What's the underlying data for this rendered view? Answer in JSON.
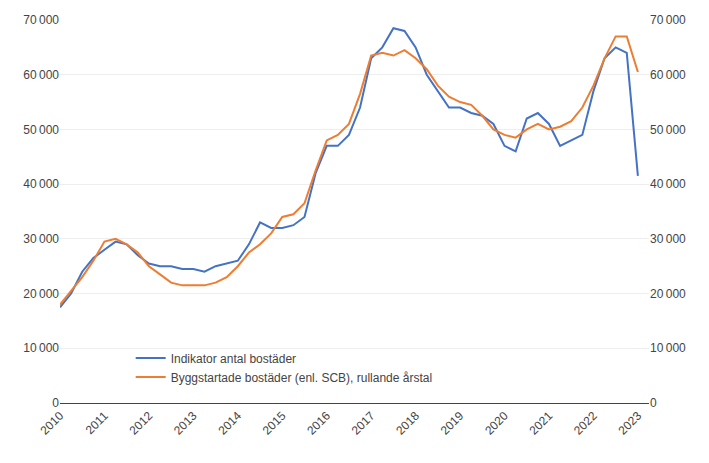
{
  "chart_data": {
    "type": "line",
    "x": [
      2010.0,
      2010.25,
      2010.5,
      2010.75,
      2011.0,
      2011.25,
      2011.5,
      2011.75,
      2012.0,
      2012.25,
      2012.5,
      2012.75,
      2013.0,
      2013.25,
      2013.5,
      2013.75,
      2014.0,
      2014.25,
      2014.5,
      2014.75,
      2015.0,
      2015.25,
      2015.5,
      2015.75,
      2016.0,
      2016.25,
      2016.5,
      2016.75,
      2017.0,
      2017.25,
      2017.5,
      2017.75,
      2018.0,
      2018.25,
      2018.5,
      2018.75,
      2019.0,
      2019.25,
      2019.5,
      2019.75,
      2020.0,
      2020.25,
      2020.5,
      2020.75,
      2021.0,
      2021.25,
      2021.5,
      2021.75,
      2022.0,
      2022.25,
      2022.5,
      2022.75,
      2023.0
    ],
    "series": [
      {
        "name": "Indikator antal bostäder",
        "color": "#4472C4",
        "values": [
          17500,
          20000,
          24000,
          26500,
          28000,
          29500,
          29000,
          27000,
          25500,
          25000,
          25000,
          24500,
          24500,
          24000,
          25000,
          25500,
          26000,
          29000,
          33000,
          32000,
          32000,
          32500,
          34000,
          42000,
          47000,
          47000,
          49000,
          54000,
          63000,
          65000,
          68500,
          68000,
          65000,
          60000,
          57000,
          54000,
          54000,
          53000,
          52500,
          51000,
          47000,
          46000,
          52000,
          53000,
          51000,
          47000,
          48000,
          49000,
          57000,
          63000,
          65000,
          64000,
          41500
        ]
      },
      {
        "name": "Byggstartade bostäder (enl. SCB), rullande årstal",
        "color": "#ED7D31",
        "values": [
          18000,
          20500,
          23000,
          26000,
          29500,
          30000,
          29000,
          27500,
          25000,
          23500,
          22000,
          21500,
          21500,
          21500,
          22000,
          23000,
          25000,
          27500,
          29000,
          31000,
          34000,
          34500,
          36500,
          42500,
          48000,
          49000,
          51000,
          56500,
          63500,
          64000,
          63500,
          64500,
          63000,
          61000,
          58000,
          56000,
          55000,
          54500,
          52500,
          50000,
          49000,
          48500,
          50000,
          51000,
          50000,
          50500,
          51500,
          54000,
          58000,
          63000,
          67000,
          67000,
          60500
        ]
      }
    ],
    "xlim": [
      2010,
      2023.25
    ],
    "xticks": [
      2010,
      2011,
      2012,
      2013,
      2014,
      2015,
      2016,
      2017,
      2018,
      2019,
      2020,
      2021,
      2022,
      2023
    ],
    "ylim": [
      0,
      70000
    ],
    "yticks": [
      0,
      {
        "value": 10000,
        "label": "10 000"
      },
      {
        "value": 20000,
        "label": "20 000"
      },
      {
        "value": 30000,
        "label": "30 000"
      },
      {
        "value": 40000,
        "label": "40 000"
      },
      {
        "value": 50000,
        "label": "50 000"
      },
      {
        "value": 60000,
        "label": "60 000"
      },
      {
        "value": 70000,
        "label": "70 000"
      }
    ],
    "y2lim": [
      0,
      70000
    ],
    "y2ticks": [
      0,
      {
        "value": 10000,
        "label": "10 000"
      },
      {
        "value": 20000,
        "label": "20 000"
      },
      {
        "value": 30000,
        "label": "30 000"
      },
      {
        "value": 40000,
        "label": "40 000"
      },
      {
        "value": 50000,
        "label": "50 000"
      },
      {
        "value": 60000,
        "label": "60 000"
      },
      {
        "value": 70000,
        "label": "70 000"
      }
    ],
    "grid": true,
    "legend": "lower left"
  }
}
